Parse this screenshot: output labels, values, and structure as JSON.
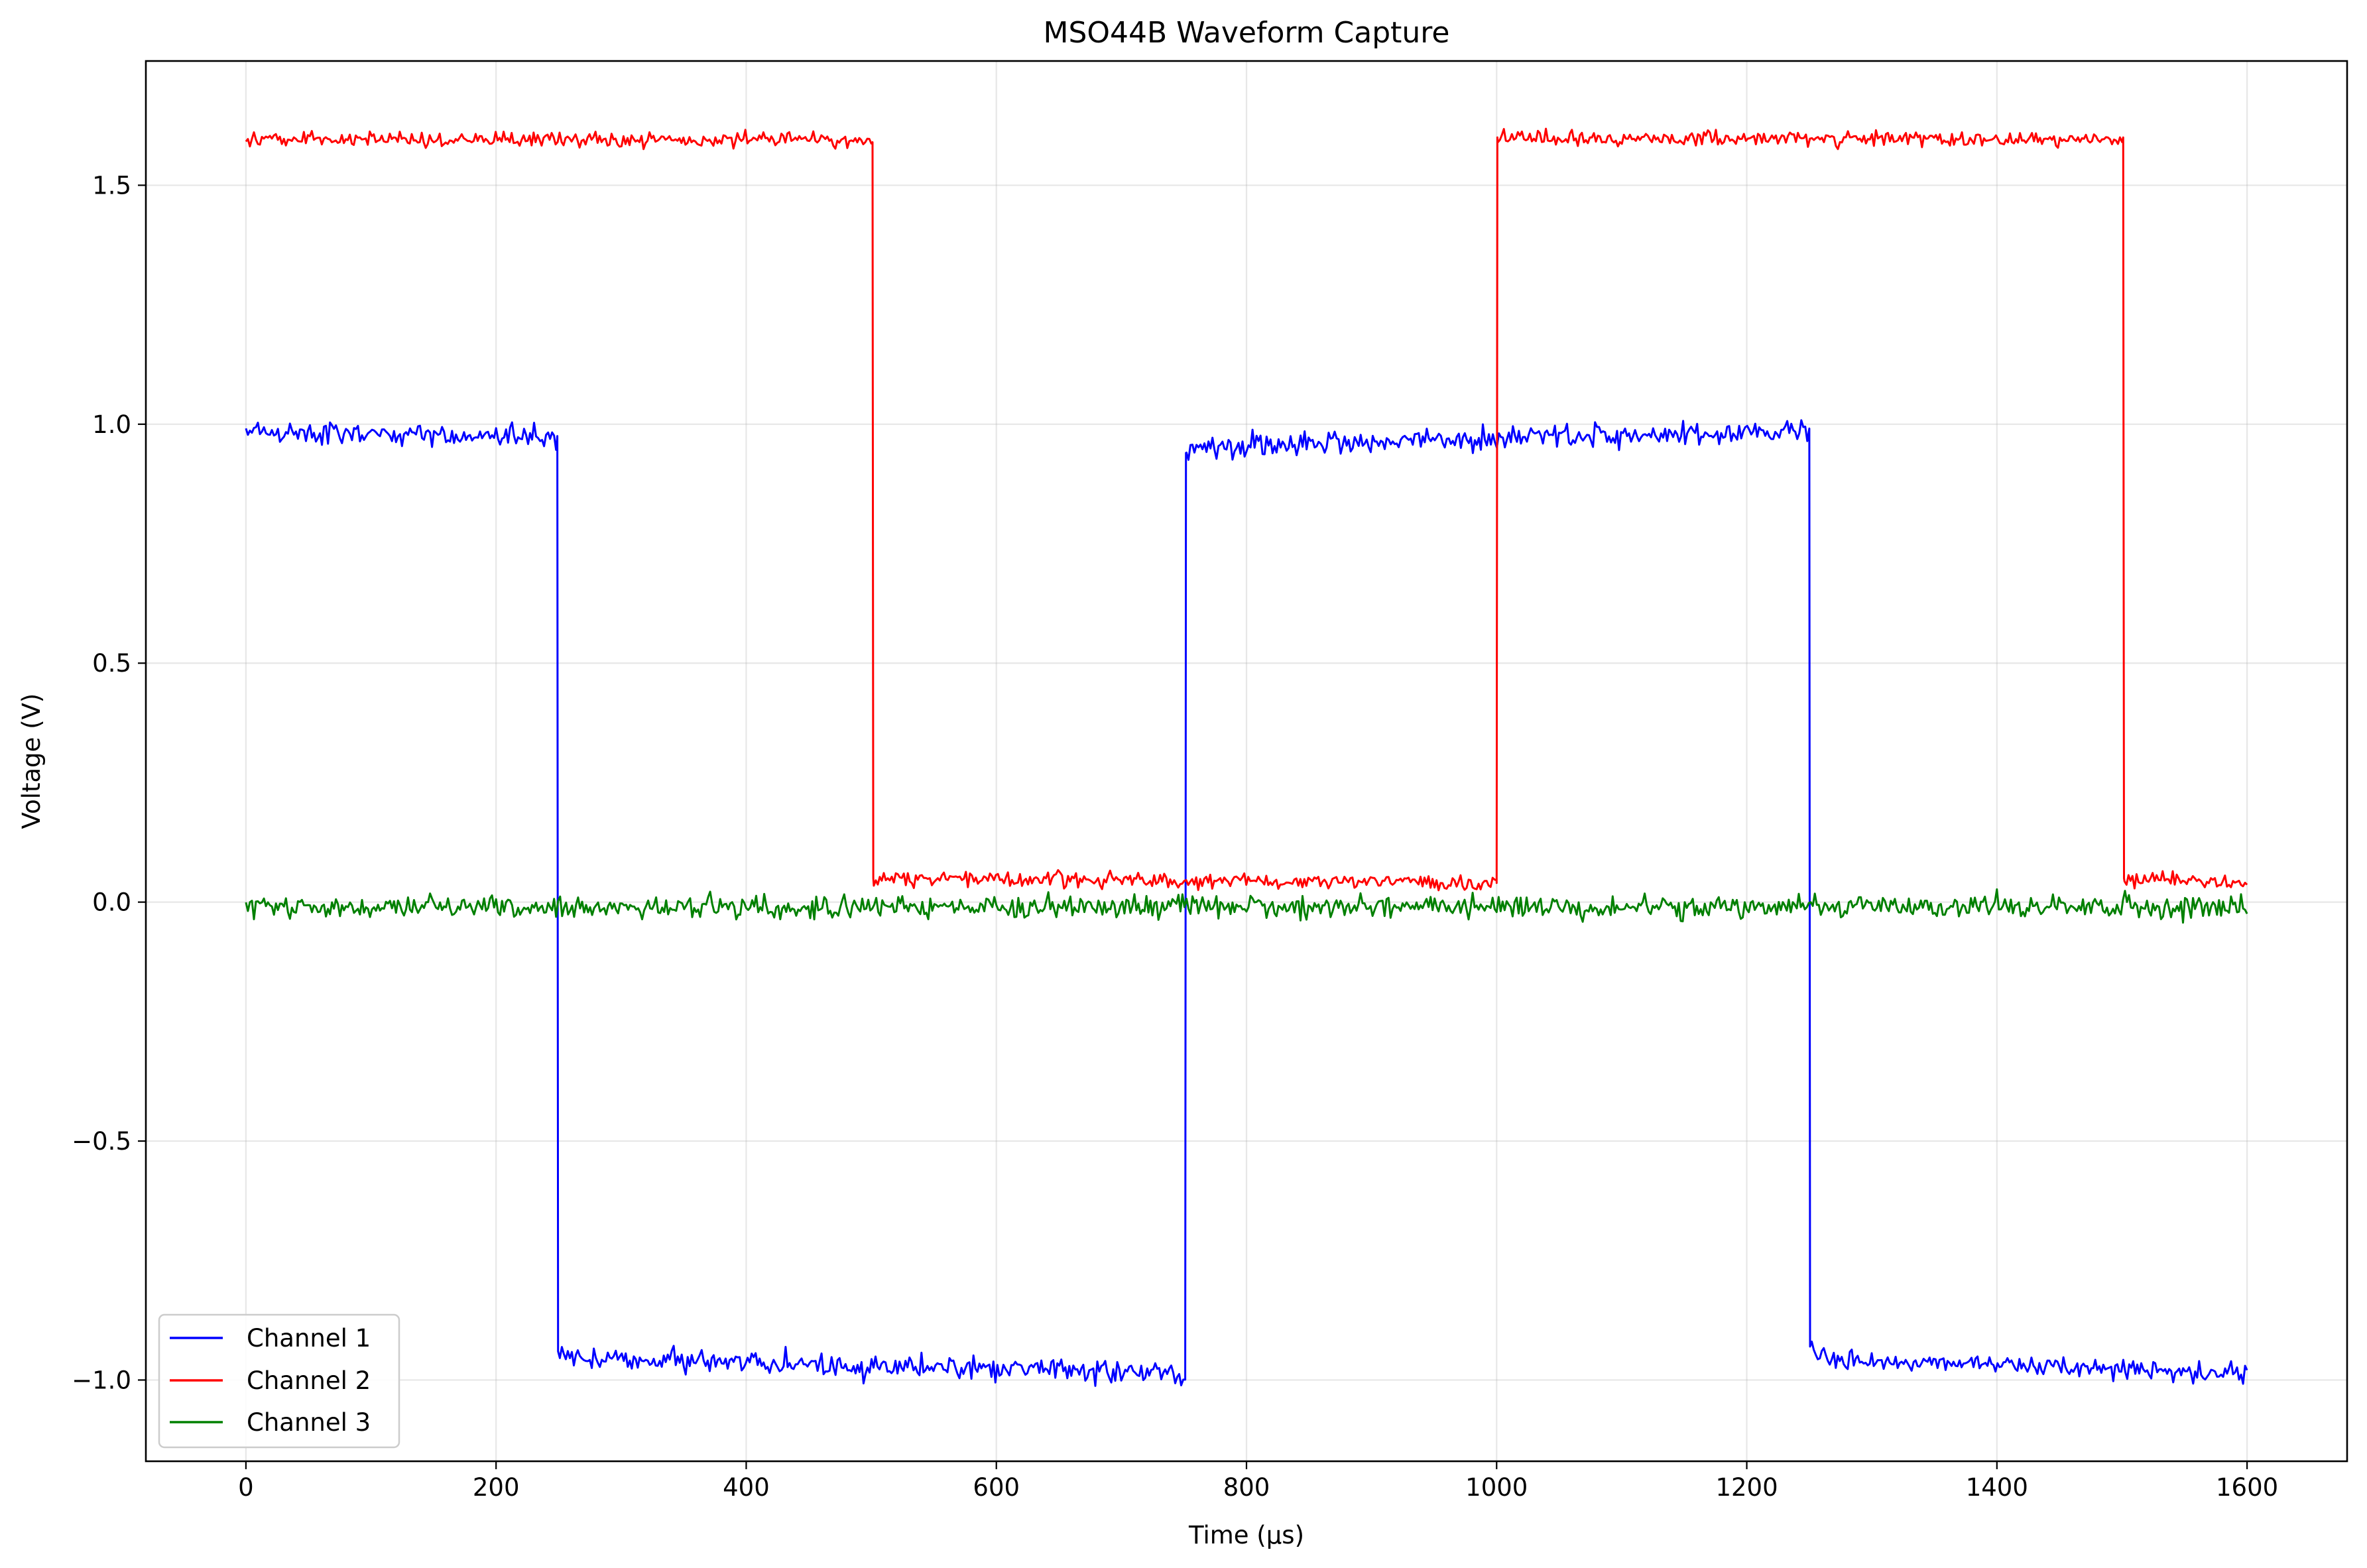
{
  "chart_data": {
    "type": "line",
    "title": "MSO44B Waveform Capture",
    "xlabel": "Time (µs)",
    "ylabel": "Voltage (V)",
    "xlim": [
      -80,
      1680
    ],
    "ylim": [
      -1.17,
      1.76
    ],
    "xticks": [
      0,
      200,
      400,
      600,
      800,
      1000,
      1200,
      1400,
      1600
    ],
    "xtick_labels": [
      "0",
      "200",
      "400",
      "600",
      "800",
      "1000",
      "1200",
      "1400",
      "1600"
    ],
    "yticks": [
      -1.0,
      -0.5,
      0.0,
      0.5,
      1.0,
      1.5
    ],
    "ytick_labels": [
      "−1.0",
      "−0.5",
      "0.0",
      "0.5",
      "1.0",
      "1.5"
    ],
    "grid": true,
    "legend_position": "lower-left",
    "series": [
      {
        "name": "Channel 1",
        "color": "#0000ff",
        "segments": [
          {
            "x": [
              0,
              248
            ],
            "y": [
              0.985,
              0.975
            ]
          },
          {
            "x": [
              251,
              751
            ],
            "y": [
              -0.955,
              -0.985
            ]
          },
          {
            "x": [
              752,
              1250
            ],
            "y": [
              0.955,
              0.985
            ]
          },
          {
            "x": [
              1252,
              1600
            ],
            "y": [
              -0.955,
              -0.985
            ]
          }
        ],
        "transitions": [
          {
            "x": 249,
            "from": 0.975,
            "to": -0.94
          },
          {
            "x": 751,
            "from": -0.99,
            "to": 0.94
          },
          {
            "x": 1250,
            "from": 0.98,
            "to": -0.93
          }
        ],
        "noise": 0.012
      },
      {
        "name": "Channel 2",
        "color": "#ff0000",
        "segments": [
          {
            "x": [
              0,
              500
            ],
            "y": [
              1.595,
              1.595
            ]
          },
          {
            "x": [
              502,
              1000
            ],
            "y": [
              0.05,
              0.04
            ]
          },
          {
            "x": [
              1001,
              1500
            ],
            "y": [
              1.6,
              1.595
            ]
          },
          {
            "x": [
              1502,
              1600
            ],
            "y": [
              0.05,
              0.04
            ]
          }
        ],
        "transitions": [
          {
            "x": 501,
            "from": 1.59,
            "to": 0.05
          },
          {
            "x": 1000,
            "from": 0.04,
            "to": 1.6
          },
          {
            "x": 1501,
            "from": 1.6,
            "to": 0.05
          }
        ],
        "noise": 0.008
      },
      {
        "name": "Channel 3",
        "color": "#008000",
        "segments": [
          {
            "x": [
              0,
              1600
            ],
            "y": [
              -0.01,
              -0.01
            ]
          }
        ],
        "transitions": [],
        "noise": 0.012
      }
    ]
  }
}
